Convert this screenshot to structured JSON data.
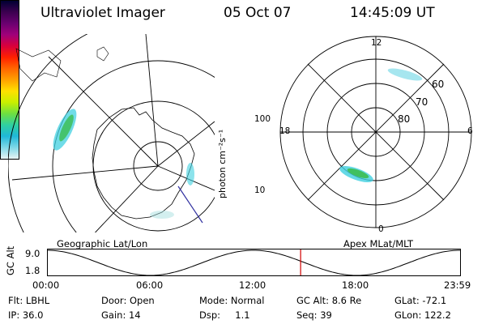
{
  "header": {
    "title": "Ultraviolet Imager",
    "date": "05 Oct 07",
    "time": "14:45:09 UT"
  },
  "left_map": {
    "label": "Geographic Lat/Lon"
  },
  "colorbar": {
    "unit_label": "photon cm⁻²s⁻¹",
    "ticks": [
      "100",
      "10"
    ],
    "colors": [
      "#000033",
      "#3c0050",
      "#6a0070",
      "#a0007a",
      "#d8003c",
      "#ff2000",
      "#ff6600",
      "#ffa000",
      "#ffe000",
      "#c8f000",
      "#6ee040",
      "#30d0a0",
      "#20b8d8",
      "#80d8e8",
      "#e8f4f4"
    ]
  },
  "right_map": {
    "label": "Apex MLat/MLT",
    "mlt_labels": {
      "top": "12",
      "left": "18",
      "right": "6",
      "bottom": "0"
    },
    "lat_labels": [
      "60",
      "70",
      "80"
    ]
  },
  "alt_plot": {
    "ylabel": "GC Alt",
    "ymax": "9.0",
    "ymin": "1.8",
    "xticks": [
      "00:00",
      "06:00",
      "12:00",
      "18:00",
      "23:59"
    ],
    "current_time_fraction": 0.614
  },
  "status": {
    "row1": [
      "Flt: LBHL",
      "Door: Open",
      "Mode: Normal",
      "GC Alt: 8.6 Re",
      "GLat: -72.1"
    ],
    "row2": [
      "IP: 36.0",
      "Gain: 14",
      "Dsp:     1.1",
      "Seq: 39",
      "GLon: 122.2"
    ]
  },
  "colors": {
    "marker": "#d00000",
    "track": "#3030a0",
    "aurora_cyan": "#40d0e0",
    "aurora_green": "#40c060"
  }
}
